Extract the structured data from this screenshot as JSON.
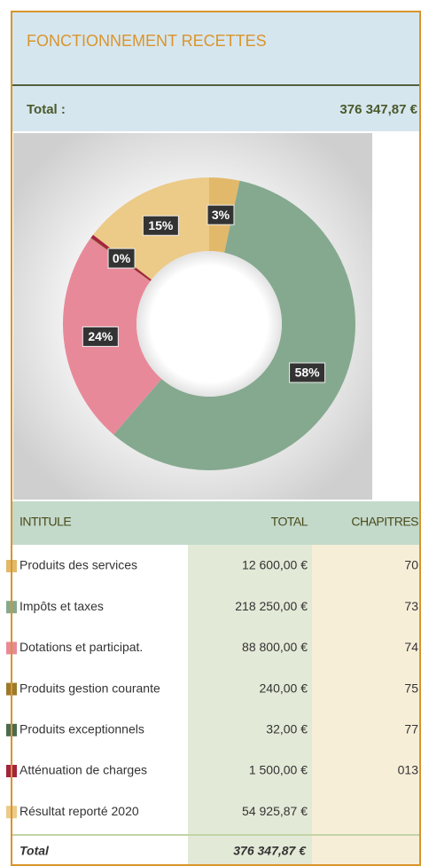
{
  "header": {
    "title": "FONCTIONNEMENT RECETTES",
    "total_label": "Total  :",
    "total_value": "376 347,87 €"
  },
  "chart_data": {
    "type": "donut",
    "values": [
      3.35,
      57.99,
      23.6,
      0.06,
      0.01,
      0.4,
      14.59
    ],
    "value_labels": [
      "3%",
      "58%",
      "24%",
      null,
      null,
      "0%",
      "15%"
    ],
    "colors": [
      "#e2b96a",
      "#85a98f",
      "#e8899a",
      "#9c7a2c",
      "#4a6b50",
      "#a3243f",
      "#ecca87"
    ]
  },
  "table": {
    "columns": [
      "INTITULE",
      "TOTAL",
      "CHAPITRES"
    ],
    "rows": [
      [
        "Produits des services",
        "12 600,00 €",
        "70"
      ],
      [
        "Impôts et taxes",
        "218 250,00 €",
        "73"
      ],
      [
        "Dotations et participat.",
        "88 800,00 €",
        "74"
      ],
      [
        "Produits gestion courante",
        "240,00 €",
        "75"
      ],
      [
        "Produits exceptionnels",
        "32,00 €",
        "77"
      ],
      [
        "Atténuation de charges",
        "1 500,00 €",
        "013"
      ],
      [
        "Résultat reporté 2020",
        "54 925,87 €",
        null
      ]
    ],
    "total": [
      "Total",
      "376 347,87 €"
    ]
  }
}
